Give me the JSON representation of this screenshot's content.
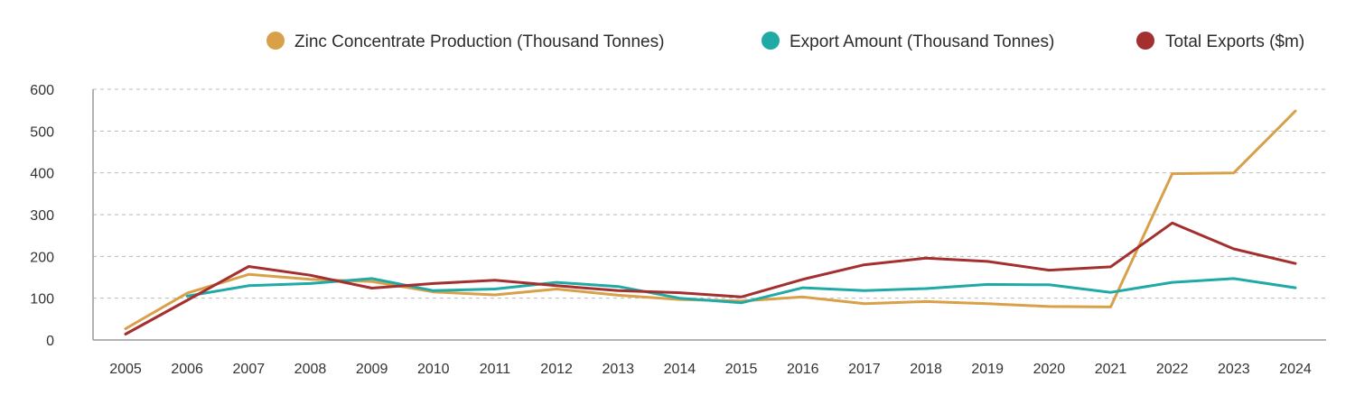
{
  "chart_data": {
    "type": "line",
    "title": "",
    "xlabel": "",
    "ylabel": "",
    "x": [
      "2005",
      "2006",
      "2007",
      "2008",
      "2009",
      "2010",
      "2011",
      "2012",
      "2013",
      "2014",
      "2015",
      "2016",
      "2017",
      "2018",
      "2019",
      "2020",
      "2021",
      "2022",
      "2023",
      "2024"
    ],
    "ylim": [
      0,
      600
    ],
    "yticks": [
      0,
      100,
      200,
      300,
      400,
      500,
      600
    ],
    "ytick_labels": [
      "0",
      "100",
      "200",
      "300",
      "400",
      "500",
      "600"
    ],
    "grid": true,
    "legend_position": "top-right",
    "series": [
      {
        "name": "Zinc Concentrate Production (Thousand Tonnes)",
        "color": "#D9A04A",
        "values": [
          27,
          112,
          157,
          145,
          140,
          115,
          108,
          122,
          107,
          97,
          93,
          103,
          87,
          92,
          87,
          80,
          79,
          398,
          400,
          548
        ]
      },
      {
        "name": "Export Amount (Thousand Tonnes)",
        "color": "#1FAAA6",
        "values": [
          null,
          105,
          130,
          135,
          147,
          118,
          122,
          138,
          128,
          100,
          89,
          125,
          118,
          123,
          133,
          132,
          114,
          138,
          147,
          125
        ]
      },
      {
        "name": "Total Exports ($m)",
        "color": "#A3302E",
        "values": [
          14,
          95,
          176,
          155,
          124,
          135,
          143,
          130,
          118,
          113,
          103,
          145,
          180,
          196,
          188,
          167,
          175,
          280,
          218,
          183
        ]
      }
    ]
  }
}
